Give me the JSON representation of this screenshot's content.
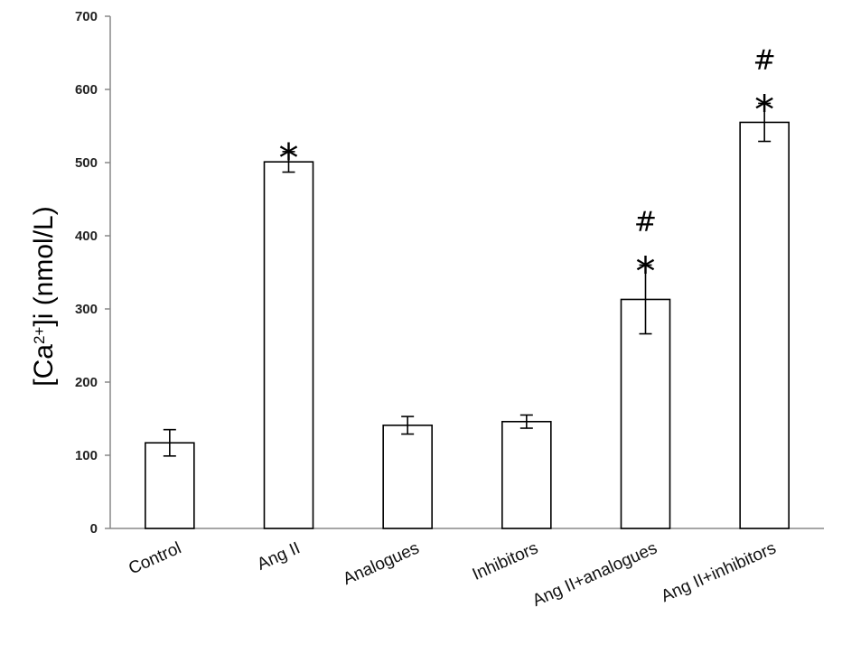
{
  "chart_data": {
    "type": "bar",
    "title": "",
    "xlabel": "",
    "ylabel": {
      "prefix": "[Ca",
      "sup": "2+",
      "suffix": "]i (nmol/L)"
    },
    "ylim": [
      0,
      700
    ],
    "yticks": [
      "0",
      "100",
      "200",
      "300",
      "400",
      "500",
      "600",
      "700"
    ],
    "categories": [
      "Control",
      "Ang II",
      "Analogues",
      "Inhibitors",
      "Ang II+analogues",
      "Ang II+inhibitors"
    ],
    "values": [
      117,
      501,
      141,
      146,
      313,
      555
    ],
    "error": [
      18,
      14,
      12,
      9,
      47,
      26
    ],
    "annotations": [
      {
        "index": 1,
        "marks": [
          "*"
        ]
      },
      {
        "index": 4,
        "marks": [
          "#",
          "*"
        ]
      },
      {
        "index": 5,
        "marks": [
          "#",
          "*"
        ]
      }
    ],
    "bar_fill": "#ffffff",
    "bar_stroke": "#000000",
    "grid": false,
    "legend": "none"
  }
}
